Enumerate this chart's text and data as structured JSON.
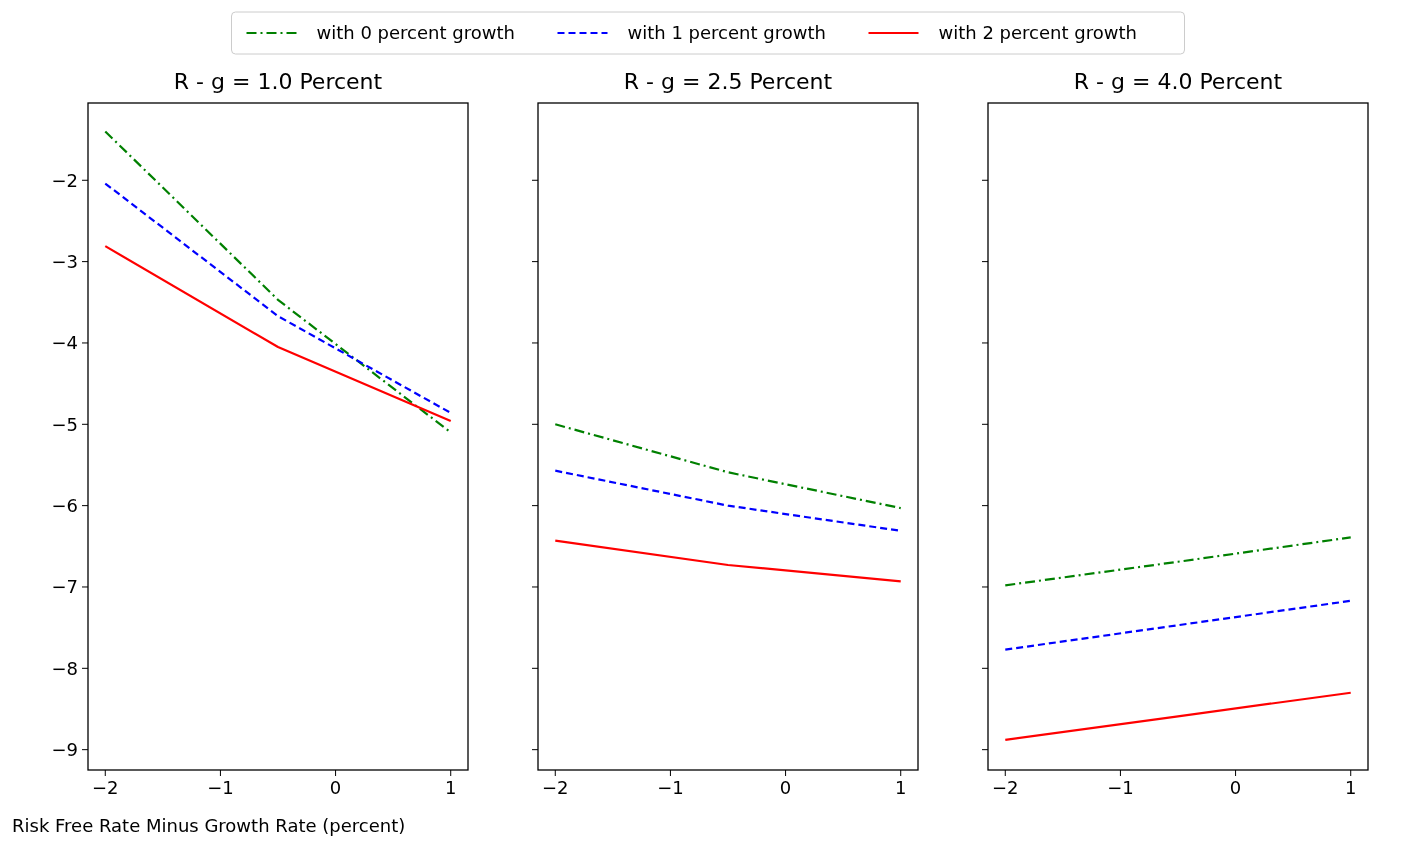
{
  "chart_data": [
    {
      "type": "line",
      "title": "R - g = 1.0 Percent",
      "xlabel": "Risk Free Rate Minus Growth Rate (percent)",
      "x": [
        -2,
        -0.5,
        1
      ],
      "xlim": [
        -2.15,
        1.15
      ],
      "xticks": [
        -2,
        -1,
        0,
        1
      ],
      "ylim": [
        -9.25,
        -1.05
      ],
      "yticks": [
        -9,
        -8,
        -7,
        -6,
        -5,
        -4,
        -3,
        -2
      ],
      "legend": "top",
      "marker": "none",
      "series": [
        {
          "name": "with 0 percent growth",
          "color": "#008000",
          "line_style": "dashdot",
          "values": [
            -1.4,
            -3.47,
            -5.1
          ]
        },
        {
          "name": "with 1 percent growth",
          "color": "#0000ff",
          "line_style": "dashed",
          "values": [
            -2.04,
            -3.67,
            -4.86
          ]
        },
        {
          "name": "with 2 percent growth",
          "color": "#ff0000",
          "line_style": "solid",
          "values": [
            -2.81,
            -4.05,
            -4.96
          ]
        }
      ]
    },
    {
      "type": "line",
      "title": "R - g = 2.5 Percent",
      "x": [
        -2,
        -0.5,
        1
      ],
      "xlim": [
        -2.15,
        1.15
      ],
      "xticks": [
        -2,
        -1,
        0,
        1
      ],
      "ylim": [
        -9.25,
        -1.05
      ],
      "yticks": [
        {
          "value": -9,
          "label": null
        },
        {
          "value": -8,
          "label": null
        },
        {
          "value": -7,
          "label": null
        },
        {
          "value": -6,
          "label": null
        },
        {
          "value": -5,
          "label": null
        },
        {
          "value": -4,
          "label": null
        },
        {
          "value": -3,
          "label": null
        },
        {
          "value": -2,
          "label": null
        }
      ],
      "tick_labels": "x",
      "marker": "none",
      "series": [
        {
          "color": "#008000",
          "line_style": "dashdot",
          "values": [
            -5.0,
            -5.59,
            -6.03
          ]
        },
        {
          "color": "#0000ff",
          "line_style": "dashed",
          "values": [
            -5.57,
            -6.0,
            -6.31
          ]
        },
        {
          "color": "#ff0000",
          "line_style": "solid",
          "values": [
            -6.43,
            -6.73,
            -6.93
          ]
        }
      ]
    },
    {
      "type": "line",
      "title": "R - g = 4.0 Percent",
      "x": [
        -2,
        -0.5,
        1
      ],
      "xlim": [
        -2.15,
        1.15
      ],
      "xticks": [
        -2,
        -1,
        0,
        1
      ],
      "ylim": [
        -9.25,
        -1.05
      ],
      "yticks": [
        {
          "value": -9,
          "label": null
        },
        {
          "value": -8,
          "label": null
        },
        {
          "value": -7,
          "label": null
        },
        {
          "value": -6,
          "label": null
        },
        {
          "value": -5,
          "label": null
        },
        {
          "value": -4,
          "label": null
        },
        {
          "value": -3,
          "label": null
        },
        {
          "value": -2,
          "label": null
        }
      ],
      "tick_labels": "x",
      "marker": "none",
      "series": [
        {
          "color": "#008000",
          "line_style": "dashdot",
          "values": [
            -6.98,
            -6.69,
            -6.39
          ]
        },
        {
          "color": "#0000ff",
          "line_style": "dashed",
          "values": [
            -7.77,
            -7.47,
            -7.17
          ]
        },
        {
          "color": "#ff0000",
          "line_style": "solid",
          "values": [
            -8.88,
            -8.59,
            -8.3
          ]
        }
      ]
    }
  ]
}
